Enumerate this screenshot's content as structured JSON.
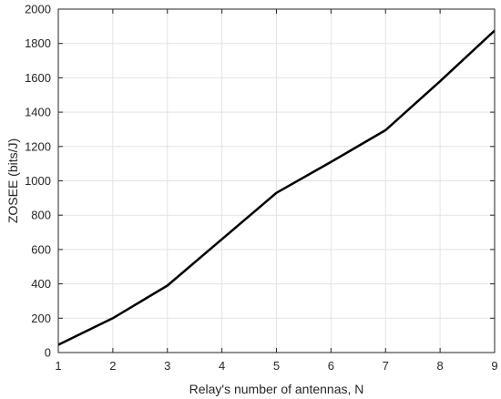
{
  "chart_data": {
    "type": "line",
    "title": "",
    "xlabel": "Relay's number of antennas, N",
    "ylabel": "ZOSEE (bits/J)",
    "xlim": [
      1,
      9
    ],
    "ylim": [
      0,
      2000
    ],
    "xticks": [
      1,
      2,
      3,
      4,
      5,
      6,
      7,
      8,
      9
    ],
    "yticks": [
      0,
      200,
      400,
      600,
      800,
      1000,
      1200,
      1400,
      1600,
      1800,
      2000
    ],
    "grid": true,
    "series": [
      {
        "color": "#000000",
        "x": [
          1,
          2,
          3,
          4,
          5,
          6,
          7,
          8,
          9
        ],
        "y": [
          45,
          200,
          390,
          660,
          930,
          1110,
          1295,
          1580,
          1875
        ]
      }
    ]
  }
}
